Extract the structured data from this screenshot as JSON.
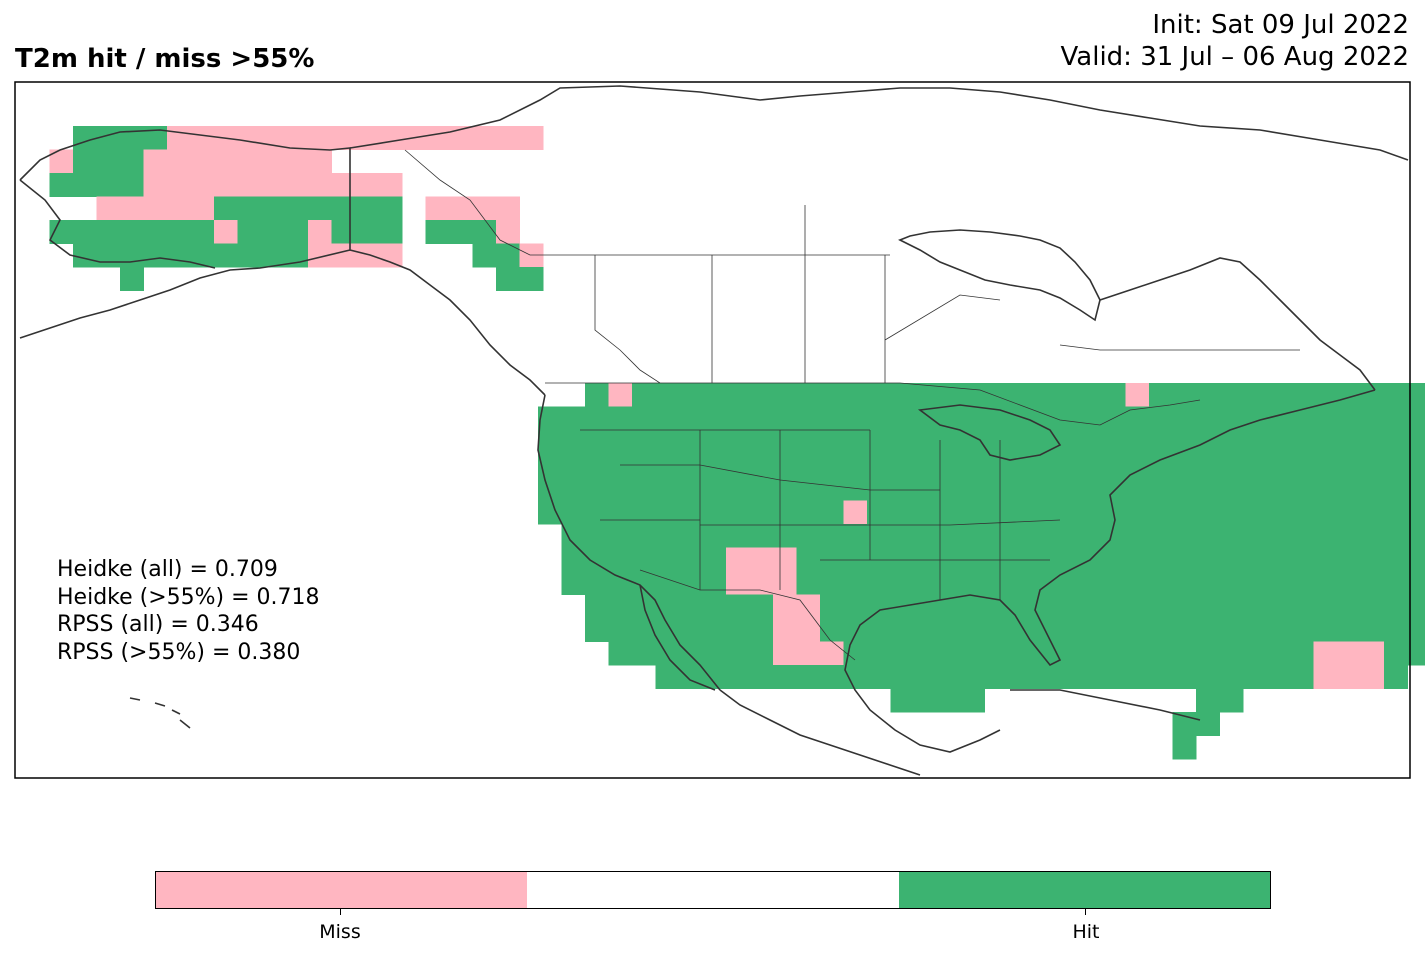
{
  "header": {
    "title": "T2m hit / miss  >55%",
    "init": "Init: Sat 09 Jul 2022",
    "valid": "Valid: 31 Jul – 06 Aug 2022"
  },
  "stats": {
    "heidke_all": "Heidke (all) = 0.709",
    "heidke_55": "Heidke (>55%) = 0.718",
    "rpss_all": "RPSS (all) = 0.346",
    "rpss_55": "RPSS (>55%) = 0.380"
  },
  "colorbar": {
    "miss_label": "Miss",
    "hit_label": "Hit",
    "colors": {
      "miss": "#ffb6c1",
      "neutral": "#ffffff",
      "hit": "#3cb371"
    }
  },
  "map": {
    "colors": {
      "hit": "#3cb371",
      "miss": "#ffb6c1",
      "coast": "#333333"
    },
    "grid_origin": {
      "lon": -170,
      "lat": 72
    },
    "grid_step_deg": 2,
    "legend": "cells: H = hit, M = miss, . = no forecast",
    "cells": [
      "..HHHHMMMMMMMMMMMMMMMMMMMMMMMMMMMMMMMMMMMMMMM",
      ".MHHHMMMMMMMM.................................",
      ".HHHHMMMMMMMMMMM..............................",
      "...MMMMMHHHHHHHH.MMMM.........................",
      ".HHHHHHHMHHHMHHH.HHHM.........................",
      "..HHHHHHHHHHMMMM...HHM........................",
      "....H...............HH........................",
      "..............................................",
      "..............................................",
      "..............................................",
      "..............................................",
      "..............................................",
      "..............................................",
      "..............................................",
      "..............................................",
      "..............................................",
      "..............................................",
      "..............................................",
      "..............................................",
      "..............................................",
      "..............................................",
      "..............................................",
      "..............................................",
      "..............................................",
      "..............................................",
      "..............................................",
      "..............................................",
      "..............................................",
      ".............................................."
    ],
    "conus_cells": [
      "..HMHHHHHHHHHHHHHHHHHHHHHMHHHHHHHHHHHHMH........",
      "HHHHHHHHHHHHHHHHHHHHHHHHHHHHHHHHHHHHHHHHHHHHHHH.",
      "HHHHHHHHHHHHHHHHHHHHHHHHHHHHHHHHHHHHHHHHHHHHHHHH",
      "HHHHHHHHHHHHHHHHHHHHHHHHHHHHHHHHHHHHHHHHHHHHHHHH",
      "HHHHHHHHHHHHHHHHHHHHHHHHHHHHHHHHHHHHHHHHHHHHHHH.",
      "HHHHHHHHHHHHHMHHHHHHHHHHHHHHHHHHHHHHHHHHHHHHHH..",
      ".HHHHHHHHHHHHHHHHHHHHHHHHHHHHHHHHHHHHHHHHHHHHH..",
      ".HHHHHHHMMMHHHHHHHHHHHHHHHHHHHHHHHHHHHHHHHHHH...",
      ".HHHHHHHMMMHHHHHHHHHHHHHHHHHHHHHHHHHHHHHHHHH....",
      "..HHHHHHHHMMHHHHHHHHHHHHHHHHHHHHHHHHHHHHHHHH....",
      "..HHHHHHHHMMHHHHHHHHHHHHHHHHHHHHHHHHHHHHHH......",
      "...HHHHHHHMMMHHHHHHHHHHHHHHHHHHHHMMMHH..........",
      ".....HHHHHHHHHHHHHHHHHHHHHHHHHHHHMMMH...........",
      "...............HHHH.........HH..................",
      "...........................HH...................",
      "...........................H...................."
    ]
  }
}
